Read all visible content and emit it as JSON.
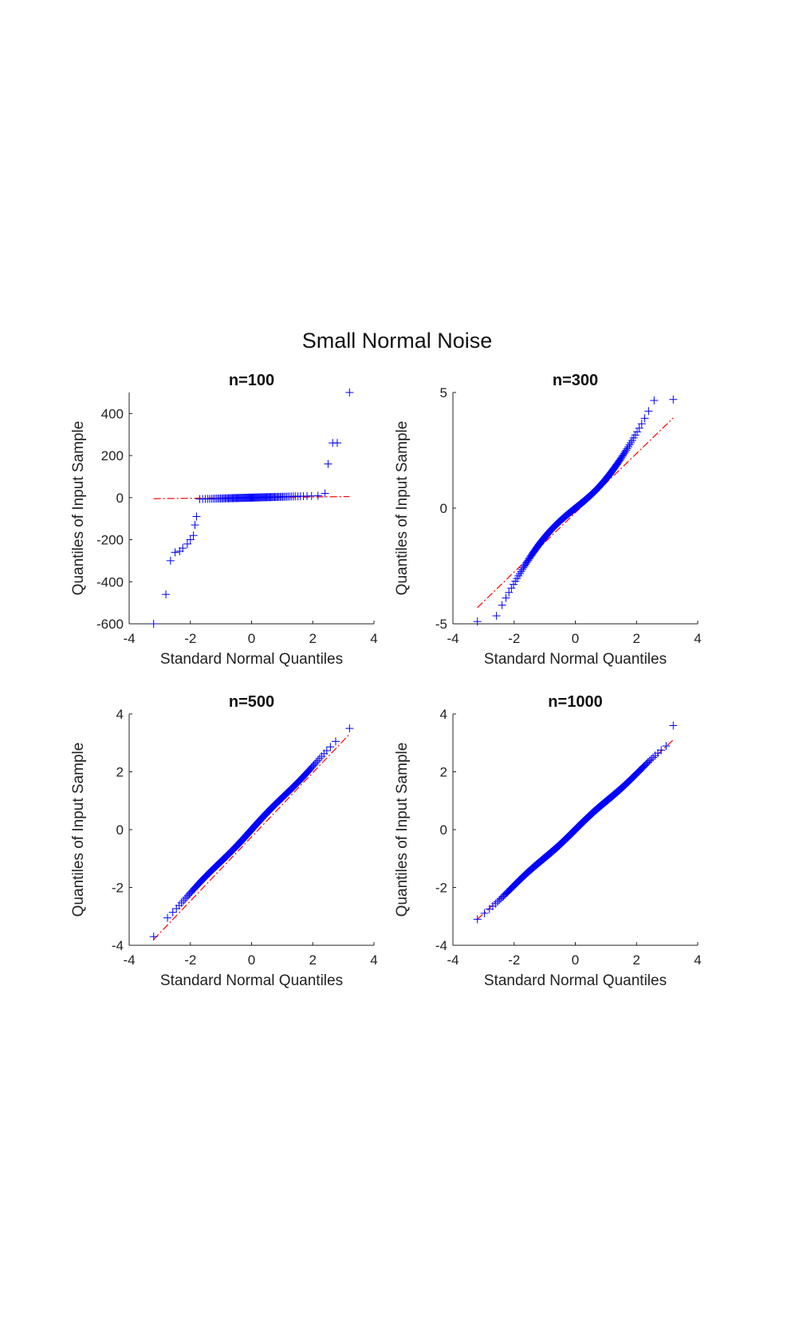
{
  "figure": {
    "title": "Small Normal Noise"
  },
  "chart_data": [
    {
      "type": "scatter",
      "title": "n=100",
      "xlabel": "Standard Normal Quantiles",
      "ylabel": "Quantiles of Input Sample",
      "xlim": [
        -4,
        4
      ],
      "ylim": [
        -600,
        500
      ],
      "xticks": [
        -4,
        -2,
        0,
        2,
        4
      ],
      "yticks": [
        -600,
        -400,
        -200,
        0,
        200,
        400
      ],
      "marker_color": "#0000ff",
      "ref_line_color": "#ff0000",
      "ref_line": {
        "x": [
          -3.2,
          3.2
        ],
        "y": [
          -5,
          5
        ]
      },
      "sample_n": 100,
      "distribution": "heavy-tailed",
      "center_slope": 4,
      "outliers": [
        {
          "x": -3.2,
          "y": -600
        },
        {
          "x": -2.8,
          "y": -460
        },
        {
          "x": -2.65,
          "y": -300
        },
        {
          "x": -2.5,
          "y": -260
        },
        {
          "x": -2.35,
          "y": -255
        },
        {
          "x": -2.25,
          "y": -240
        },
        {
          "x": -2.1,
          "y": -220
        },
        {
          "x": -2.0,
          "y": -200
        },
        {
          "x": -1.9,
          "y": -180
        },
        {
          "x": -1.85,
          "y": -130
        },
        {
          "x": -1.8,
          "y": -90
        },
        {
          "x": 2.4,
          "y": 20
        },
        {
          "x": 2.5,
          "y": 160
        },
        {
          "x": 2.65,
          "y": 260
        },
        {
          "x": 2.8,
          "y": 260
        },
        {
          "x": 3.2,
          "y": 500
        }
      ]
    },
    {
      "type": "scatter",
      "title": "n=300",
      "xlabel": "Standard Normal Quantiles",
      "ylabel": "Quantiles of Input Sample",
      "xlim": [
        -4,
        4
      ],
      "ylim": [
        -5,
        5
      ],
      "xticks": [
        -4,
        -2,
        0,
        2,
        4
      ],
      "yticks": [
        -5,
        0,
        5
      ],
      "marker_color": "#0000ff",
      "ref_line_color": "#ff0000",
      "ref_line": {
        "x": [
          -3.2,
          3.2
        ],
        "y": [
          -4.3,
          3.9
        ]
      },
      "sample_n": 300,
      "distribution": "s-shape",
      "scale": 1.3,
      "endpoints": [
        {
          "x": -3.2,
          "y": -4.9
        },
        {
          "x": 3.2,
          "y": 4.7
        }
      ]
    },
    {
      "type": "scatter",
      "title": "n=500",
      "xlabel": "Standard Normal Quantiles",
      "ylabel": "Quantiles of Input Sample",
      "xlim": [
        -4,
        4
      ],
      "ylim": [
        -4,
        4
      ],
      "xticks": [
        -4,
        -2,
        0,
        2,
        4
      ],
      "yticks": [
        -4,
        -2,
        0,
        2,
        4
      ],
      "marker_color": "#0000ff",
      "ref_line_color": "#ff0000",
      "ref_line": {
        "x": [
          -3.2,
          3.2
        ],
        "y": [
          -3.8,
          3.3
        ]
      },
      "sample_n": 500,
      "distribution": "linear",
      "scale": 1.1,
      "endpoints": [
        {
          "x": -3.2,
          "y": -3.7
        },
        {
          "x": 3.2,
          "y": 3.5
        }
      ]
    },
    {
      "type": "scatter",
      "title": "n=1000",
      "xlabel": "Standard Normal Quantiles",
      "ylabel": "Quantiles of Input Sample",
      "xlim": [
        -4,
        4
      ],
      "ylim": [
        -4,
        4
      ],
      "xticks": [
        -4,
        -2,
        0,
        2,
        4
      ],
      "yticks": [
        -4,
        -2,
        0,
        2,
        4
      ],
      "marker_color": "#0000ff",
      "ref_line_color": "#ff0000",
      "ref_line": {
        "x": [
          -3.2,
          3.2
        ],
        "y": [
          -3.1,
          3.1
        ]
      },
      "sample_n": 1000,
      "distribution": "linear",
      "scale": 0.97,
      "endpoints": [
        {
          "x": -3.2,
          "y": -3.1
        },
        {
          "x": 3.2,
          "y": 3.6
        }
      ]
    }
  ]
}
